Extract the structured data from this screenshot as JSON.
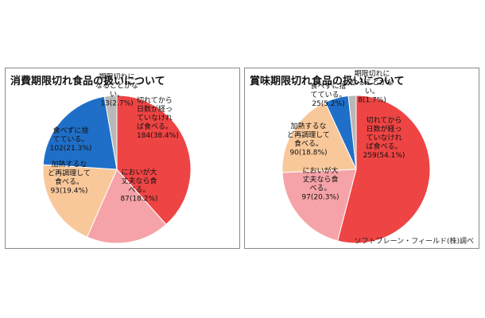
{
  "chart_data": [
    {
      "type": "pie",
      "title": "消費期限切れ食品の扱いについて",
      "slices": [
        {
          "lines": [
            "切れてから",
            "日数が経っ",
            "ていなけれ",
            "ば食べる。",
            "184(38.4%)"
          ],
          "value": 38.4,
          "color": "#ee4444"
        },
        {
          "lines": [
            "においが大",
            "丈夫なら食",
            "べる。",
            "87(18.2%)"
          ],
          "value": 18.2,
          "color": "#f5a3a8"
        },
        {
          "lines": [
            "加熱するな",
            "ど再調理して",
            "食べる。",
            "93(19.4%)"
          ],
          "value": 19.4,
          "color": "#f9c89a"
        },
        {
          "lines": [
            "食べずに捨",
            "てている。",
            "102(21.3%)"
          ],
          "value": 21.3,
          "color": "#1f6fc8"
        },
        {
          "lines": [
            "期限切れに",
            "なることがな",
            "い。",
            "13(2.7%)"
          ],
          "value": 2.7,
          "color": "#b8b8b8"
        }
      ]
    },
    {
      "type": "pie",
      "title": "賞味期限切れ食品の扱いについて",
      "slices": [
        {
          "lines": [
            "切れてから",
            "日数が経っ",
            "ていなけれ",
            "ば食べる。",
            "259(54.1%)"
          ],
          "value": 54.1,
          "color": "#ee4444"
        },
        {
          "lines": [
            "においが大",
            "丈夫なら食",
            "べる。",
            "97(20.3%)"
          ],
          "value": 20.3,
          "color": "#f5a3a8"
        },
        {
          "lines": [
            "加熱するな",
            "ど再調理して",
            "食べる。",
            "90(18.8%)"
          ],
          "value": 18.8,
          "color": "#f9c89a"
        },
        {
          "lines": [
            "食べずに捨",
            "てている。",
            "25(5.2%)"
          ],
          "value": 5.2,
          "color": "#1f6fc8"
        },
        {
          "lines": [
            "期限切れに",
            "なることがな",
            "い。",
            "8(1.7%)"
          ],
          "value": 1.7,
          "color": "#b8b8b8"
        }
      ]
    }
  ],
  "credit": "ソフトブレーン・フィールド(株)調べ"
}
